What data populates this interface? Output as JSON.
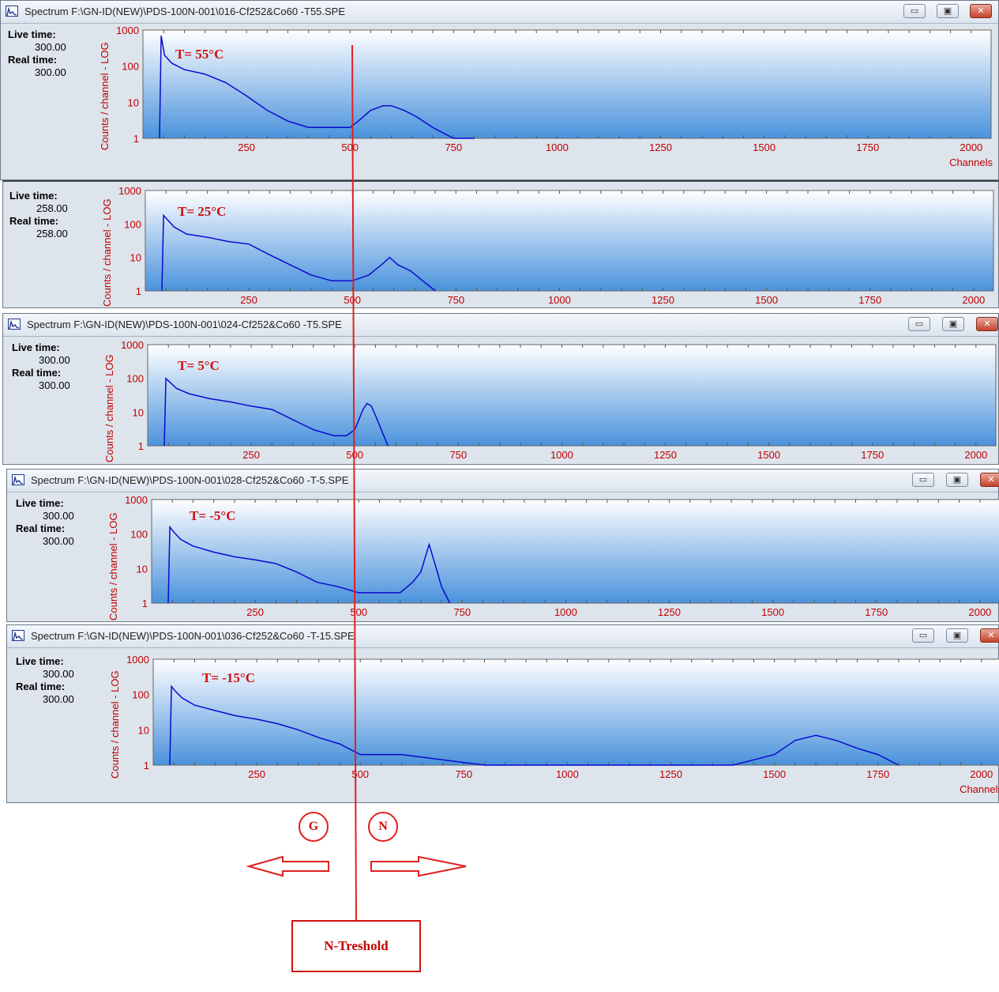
{
  "windows": [
    {
      "title": "Spectrum F:\\GN-ID(NEW)\\PDS-100N-001\\016-Cf252&Co60 -T55.SPE",
      "has_titlebar": true,
      "live_time_label": "Live time:",
      "live_time": "300.00",
      "real_time_label": "Real time:",
      "real_time": "300.00",
      "temperature": "T= 55°C",
      "show_channels_label": true
    },
    {
      "title": "",
      "has_titlebar": false,
      "live_time_label": "Live time:",
      "live_time": "258.00",
      "real_time_label": "Real time:",
      "real_time": "258.00",
      "temperature": "T= 25°C",
      "show_channels_label": false
    },
    {
      "title": "Spectrum F:\\GN-ID(NEW)\\PDS-100N-001\\024-Cf252&Co60 -T5.SPE",
      "has_titlebar": true,
      "live_time_label": "Live time:",
      "live_time": "300.00",
      "real_time_label": "Real time:",
      "real_time": "300.00",
      "temperature": "T= 5°C",
      "show_channels_label": false
    },
    {
      "title": "Spectrum F:\\GN-ID(NEW)\\PDS-100N-001\\028-Cf252&Co60 -T-5.SPE",
      "has_titlebar": true,
      "live_time_label": "Live time:",
      "live_time": "300.00",
      "real_time_label": "Real time:",
      "real_time": "300.00",
      "temperature": "T= -5°C",
      "show_channels_label": false
    },
    {
      "title": "Spectrum F:\\GN-ID(NEW)\\PDS-100N-001\\036-Cf252&Co60 -T-15.SPE",
      "has_titlebar": true,
      "live_time_label": "Live time:",
      "live_time": "300.00",
      "real_time_label": "Real time:",
      "real_time": "300.00",
      "temperature": "T= -15°C",
      "show_channels_label": true
    }
  ],
  "window_buttons": {
    "minimize": "▭",
    "restore": "▣",
    "close": "✕"
  },
  "annotations": {
    "gamma_badge": "G",
    "neutron_badge": "N",
    "threshold_box": "N-Treshold"
  },
  "colors": {
    "axis_text": "#c00000",
    "spectrum": "#0a0ad0",
    "annotation": "#e02020",
    "plot_top": "#ffffff",
    "plot_bottom": "#4a92dc"
  },
  "chart_data": {
    "type": "line",
    "yscale": "log",
    "xlabel": "Channels",
    "ylabel": "Counts / channel - LOG",
    "xlim": [
      0,
      2048
    ],
    "ylim": [
      1,
      1000
    ],
    "x_ticks": [
      "250",
      "500",
      "750",
      "1000",
      "1250",
      "1500",
      "1750",
      "2000"
    ],
    "y_ticks": [
      "1",
      "10",
      "100",
      "1000"
    ],
    "threshold_channel": 500,
    "series": [
      {
        "x": [
          40,
          44,
          52,
          70,
          100,
          150,
          200,
          250,
          300,
          350,
          400,
          450,
          500,
          520,
          550,
          580,
          600,
          630,
          660,
          700,
          750,
          800
        ],
        "values": [
          1,
          700,
          200,
          120,
          80,
          60,
          35,
          15,
          6,
          3,
          2,
          2,
          2,
          3,
          6,
          8,
          8,
          6,
          4,
          2,
          1,
          1
        ]
      },
      {
        "x": [
          40,
          44,
          52,
          70,
          100,
          150,
          200,
          250,
          300,
          350,
          400,
          450,
          500,
          540,
          570,
          590,
          610,
          640,
          670,
          700
        ],
        "values": [
          1,
          180,
          140,
          80,
          50,
          40,
          30,
          25,
          12,
          6,
          3,
          2,
          2,
          3,
          6,
          10,
          6,
          4,
          2,
          1
        ]
      },
      {
        "x": [
          40,
          44,
          52,
          70,
          100,
          150,
          200,
          250,
          300,
          350,
          400,
          450,
          480,
          500,
          510,
          520,
          530,
          540,
          550,
          560,
          570,
          580
        ],
        "values": [
          1,
          100,
          80,
          50,
          35,
          25,
          20,
          15,
          12,
          6,
          3,
          2,
          2,
          3,
          6,
          12,
          18,
          15,
          8,
          4,
          2,
          1
        ]
      },
      {
        "x": [
          40,
          44,
          52,
          70,
          100,
          150,
          200,
          250,
          300,
          350,
          400,
          450,
          500,
          550,
          600,
          630,
          650,
          660,
          670,
          680,
          690,
          700,
          720
        ],
        "values": [
          1,
          160,
          120,
          70,
          45,
          30,
          22,
          18,
          14,
          8,
          4,
          3,
          2,
          2,
          2,
          4,
          8,
          20,
          50,
          20,
          8,
          3,
          1
        ]
      },
      {
        "x": [
          40,
          44,
          52,
          70,
          100,
          150,
          200,
          250,
          300,
          350,
          400,
          450,
          500,
          600,
          800,
          1000,
          1200,
          1400,
          1500,
          1550,
          1600,
          1650,
          1700,
          1750,
          1800
        ],
        "values": [
          1,
          170,
          130,
          80,
          50,
          35,
          25,
          20,
          15,
          10,
          6,
          4,
          2,
          2,
          1,
          1,
          1,
          1,
          2,
          5,
          7,
          5,
          3,
          2,
          1
        ]
      }
    ]
  }
}
